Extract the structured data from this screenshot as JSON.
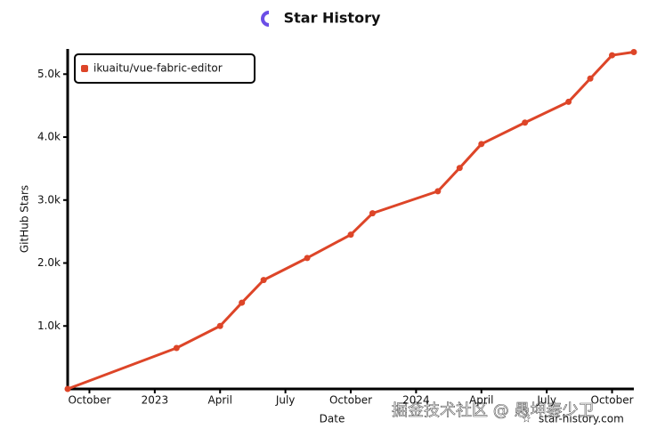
{
  "chart_data": {
    "type": "line",
    "title": "Star History",
    "x_label": "Date",
    "y_label": "GitHub Stars",
    "x": [
      "2022-09",
      "2023-02",
      "2023-04",
      "2023-05",
      "2023-06",
      "2023-08",
      "2023-10",
      "2023-11",
      "2024-02",
      "2024-03",
      "2024-04",
      "2024-06",
      "2024-08",
      "2024-09",
      "2024-10",
      "2024-11"
    ],
    "series": [
      {
        "name": "ikuaitu/vue-fabric-editor",
        "color": "#dd4528",
        "values": [
          0,
          650,
          1000,
          1370,
          1730,
          2080,
          2450,
          2790,
          3140,
          3510,
          3890,
          4230,
          4560,
          4930,
          5300,
          5350
        ]
      }
    ],
    "xlim": [
      "2022-09",
      "2024-11"
    ],
    "xticks": [
      {
        "value": "2022-10",
        "label": "October"
      },
      {
        "value": "2023-01",
        "label": "2023"
      },
      {
        "value": "2023-04",
        "label": "April"
      },
      {
        "value": "2023-07",
        "label": "July"
      },
      {
        "value": "2023-10",
        "label": "October"
      },
      {
        "value": "2024-01",
        "label": "2024"
      },
      {
        "value": "2024-04",
        "label": "April"
      },
      {
        "value": "2024-07",
        "label": "July"
      },
      {
        "value": "2024-10",
        "label": "October"
      }
    ],
    "ylim": [
      0,
      5400
    ],
    "yticks": [
      {
        "value": 1000,
        "label": "1.0k"
      },
      {
        "value": 2000,
        "label": "2.0k"
      },
      {
        "value": 3000,
        "label": "3.0k"
      },
      {
        "value": 4000,
        "label": "4.0k"
      },
      {
        "value": 5000,
        "label": "5.0k"
      }
    ],
    "legend": "top-left",
    "watermark": "star-history.com",
    "overlay_text": "掘金技术社区 @ 愚坤秦少卫"
  }
}
